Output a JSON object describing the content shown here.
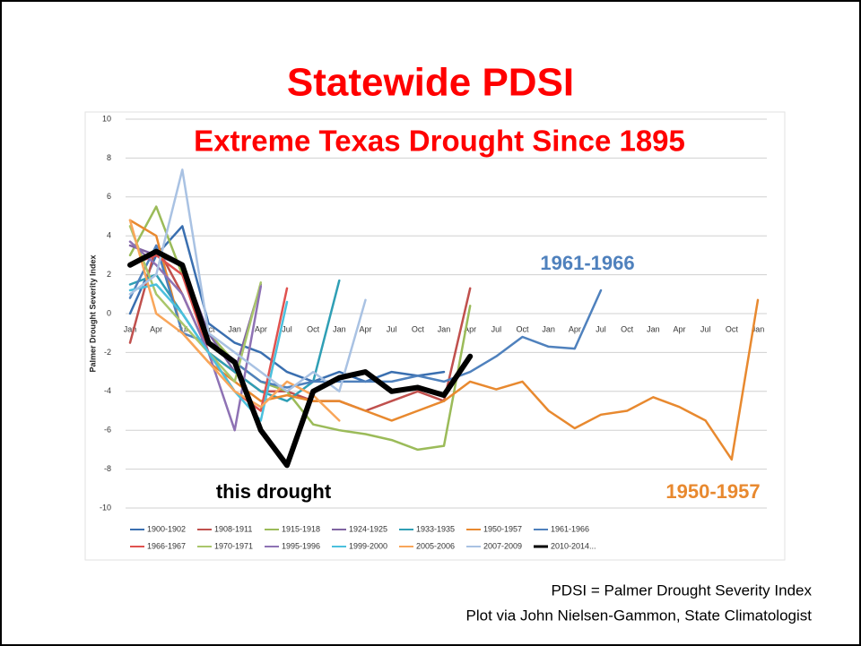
{
  "chart_data": {
    "type": "line",
    "title": "Statewide PDSI",
    "subtitle": "Extreme Texas Drought Since 1895",
    "y_label": "Palmer Drought Severity Index",
    "categories": [
      "Jan",
      "Apr",
      "Jul",
      "Oct",
      "Jan",
      "Apr",
      "Jul",
      "Oct",
      "Jan",
      "Apr",
      "Jul",
      "Oct",
      "Jan",
      "Apr",
      "Jul",
      "Oct",
      "Jan",
      "Apr",
      "Jul",
      "Oct",
      "Jan",
      "Apr",
      "Jul",
      "Oct",
      "Jan"
    ],
    "ylim": [
      -10,
      10
    ],
    "yticks": [
      -10,
      -8,
      -6,
      -4,
      -2,
      0,
      2,
      4,
      6,
      8,
      10
    ],
    "grid": true,
    "series": [
      {
        "name": "1900-1902",
        "color": "#3a6fb0",
        "values": [
          0,
          3,
          4.5,
          -0.5,
          -1.5,
          -2,
          -3,
          -3.5,
          -3,
          -3.5,
          -3,
          -3.2,
          -3,
          null,
          null,
          null,
          null,
          null,
          null,
          null,
          null,
          null,
          null,
          null,
          null
        ]
      },
      {
        "name": "1908-1911",
        "color": "#c0504d",
        "values": [
          -1.5,
          3.5,
          1,
          -2,
          -3,
          -4,
          -4,
          -4.5,
          -4.5,
          -5,
          -4.5,
          -4,
          -4.5,
          1.3,
          null,
          null,
          null,
          null,
          null,
          null,
          null,
          null,
          null,
          null,
          null
        ]
      },
      {
        "name": "1915-1918",
        "color": "#9bbb59",
        "values": [
          3,
          5.5,
          2,
          -1,
          -2.5,
          -3.5,
          -4,
          -5.7,
          -6,
          -6.2,
          -6.5,
          -7,
          -6.8,
          0.4,
          null,
          null,
          null,
          null,
          null,
          null,
          null,
          null,
          null,
          null,
          null
        ]
      },
      {
        "name": "1924-1925",
        "color": "#8064a2",
        "values": [
          3.5,
          3,
          2.5,
          -1,
          -3,
          1.5,
          null,
          null,
          null,
          null,
          null,
          null,
          null,
          null,
          null,
          null,
          null,
          null,
          null,
          null,
          null,
          null,
          null,
          null,
          null
        ]
      },
      {
        "name": "1933-1935",
        "color": "#2f9fb5",
        "values": [
          1.5,
          2,
          0,
          -2,
          -3,
          -4,
          -4.5,
          -3.5,
          1.7,
          null,
          null,
          null,
          null,
          null,
          null,
          null,
          null,
          null,
          null,
          null,
          null,
          null,
          null,
          null,
          null
        ]
      },
      {
        "name": "1950-1957",
        "color": "#e8892f",
        "values": [
          4.8,
          4,
          -1,
          -2.5,
          -3.5,
          -4.5,
          -4.2,
          -4.5,
          -4.5,
          -5,
          -5.5,
          -5,
          -4.5,
          -3.5,
          -3.9,
          -3.5,
          -5,
          -5.9,
          -5.2,
          -5,
          -4.3,
          -4.8,
          -5.5,
          -7.5,
          0.7
        ]
      },
      {
        "name": "1961-1966",
        "color": "#4f81bd",
        "values": [
          0.8,
          3.5,
          -1,
          -1.5,
          -2.5,
          -3.5,
          -3.8,
          -3.5,
          -3.5,
          -3.5,
          -3.5,
          -3.2,
          -3.5,
          -3,
          -2.2,
          -1.2,
          -1.7,
          -1.8,
          1.2,
          null,
          null,
          null,
          null,
          null,
          null
        ]
      },
      {
        "name": "1966-1967",
        "color": "#e0524f",
        "values": [
          2.5,
          3,
          2,
          -2,
          -4,
          -5,
          1.3,
          null,
          null,
          null,
          null,
          null,
          null,
          null,
          null,
          null,
          null,
          null,
          null,
          null,
          null,
          null,
          null,
          null,
          null
        ]
      },
      {
        "name": "1970-1971",
        "color": "#a9c66a",
        "values": [
          4.5,
          1,
          -0.5,
          -2,
          -3.5,
          1.6,
          null,
          null,
          null,
          null,
          null,
          null,
          null,
          null,
          null,
          null,
          null,
          null,
          null,
          null,
          null,
          null,
          null,
          null,
          null
        ]
      },
      {
        "name": "1995-1996",
        "color": "#8e72b4",
        "values": [
          3.7,
          2.5,
          1,
          -2,
          -6,
          1.4,
          null,
          null,
          null,
          null,
          null,
          null,
          null,
          null,
          null,
          null,
          null,
          null,
          null,
          null,
          null,
          null,
          null,
          null,
          null
        ]
      },
      {
        "name": "1999-2000",
        "color": "#4bc0dd",
        "values": [
          1.2,
          1.5,
          0,
          -2,
          -4,
          -5.5,
          0.6,
          null,
          null,
          null,
          null,
          null,
          null,
          null,
          null,
          null,
          null,
          null,
          null,
          null,
          null,
          null,
          null,
          null,
          null
        ]
      },
      {
        "name": "2005-2006",
        "color": "#f9a65a",
        "values": [
          4.8,
          0,
          -1,
          -2.5,
          -4,
          -4.8,
          -3.5,
          -4.2,
          -5.5,
          null,
          null,
          null,
          null,
          null,
          null,
          null,
          null,
          null,
          null,
          null,
          null,
          null,
          null,
          null,
          null
        ]
      },
      {
        "name": "2007-2009",
        "color": "#a9c2e3",
        "values": [
          1,
          2,
          7.4,
          -1,
          -2,
          -3,
          -4,
          -3,
          -4,
          0.7,
          null,
          null,
          null,
          null,
          null,
          null,
          null,
          null,
          null,
          null,
          null,
          null,
          null,
          null,
          null
        ]
      },
      {
        "name": "2010-2014...",
        "color": "#000000",
        "values": [
          2.5,
          3.2,
          2.5,
          -1.5,
          -2.5,
          -6,
          -7.8,
          -4,
          -3.3,
          -3,
          -4,
          -3.8,
          -4.2,
          -2.2,
          null,
          null,
          null,
          null,
          null,
          null,
          null,
          null,
          null,
          null,
          null
        ]
      }
    ],
    "annotations": [
      {
        "text": "1961-1966",
        "color": "#4f81bd"
      },
      {
        "text": "this drought",
        "color": "#000000"
      },
      {
        "text": "1950-1957",
        "color": "#e8892f"
      }
    ]
  },
  "notes": [
    "PDSI = Palmer Drought Severity Index",
    "Plot via John Nielsen-Gammon, State Climatologist"
  ]
}
